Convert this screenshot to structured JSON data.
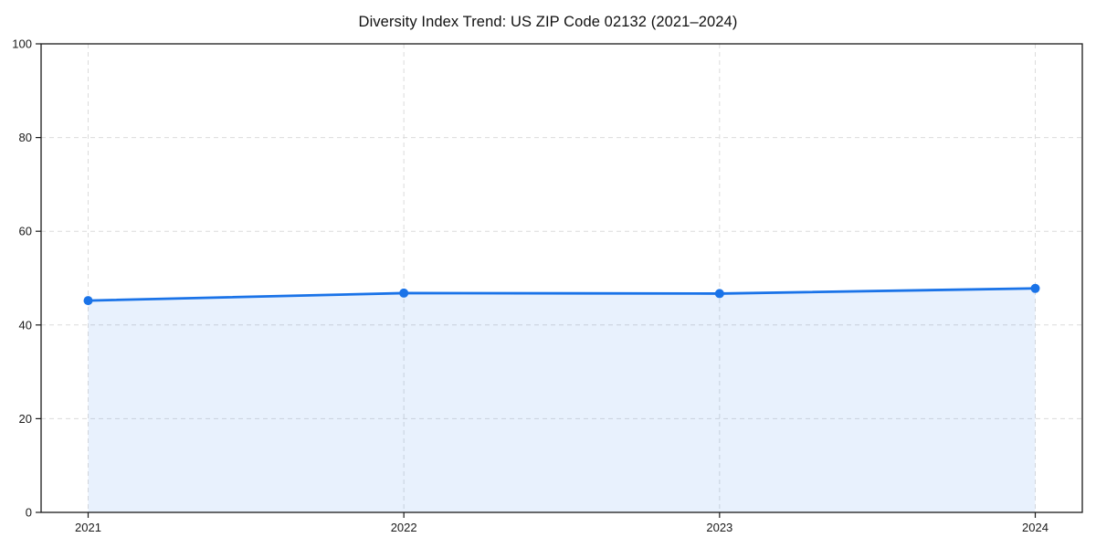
{
  "chart_data": {
    "type": "line",
    "title": "Diversity Index Trend: US ZIP Code 02132 (2021–2024)",
    "x": [
      "2021",
      "2022",
      "2023",
      "2024"
    ],
    "series": [
      {
        "name": "Diversity Index",
        "values": [
          45.2,
          46.8,
          46.7,
          47.8
        ]
      }
    ],
    "xlabel": "",
    "ylabel": "",
    "ylim": [
      0,
      100
    ],
    "yticks": [
      0,
      20,
      40,
      60,
      80,
      100
    ],
    "grid": true,
    "grid_style": "dashed",
    "legend": "none",
    "marker": "circle",
    "area_fill": true,
    "style": {
      "line_color": "#1a73e8",
      "marker_color": "#1a73e8",
      "area_fill_color": "rgba(26,115,232,0.10)",
      "gridline_color": "#dcdcdc",
      "spine_color": "#1a1a1a",
      "tick_color": "#1a1a1a",
      "tick_label_color": "#1a1a1a",
      "title_color": "#111111",
      "background_color": "#ffffff"
    }
  }
}
